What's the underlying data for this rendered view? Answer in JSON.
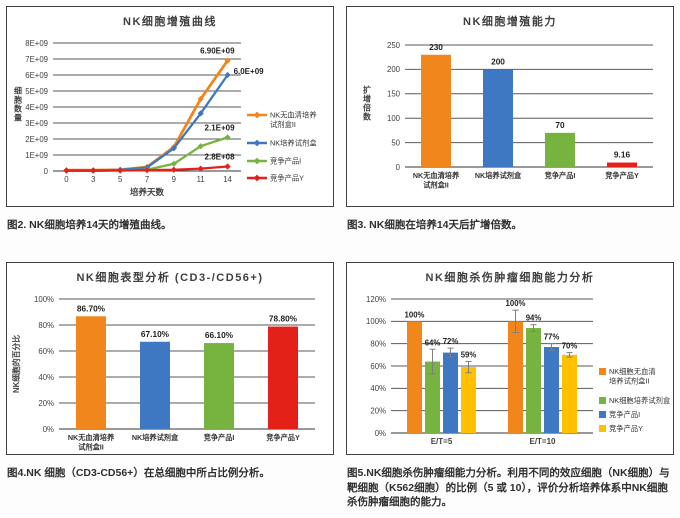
{
  "colors": {
    "orange": "#F0861C",
    "blue": "#3E78C3",
    "green": "#76B43F",
    "red": "#E32119",
    "yellow": "#FFC000",
    "grid": "#595959",
    "axis": "#3f3f3f",
    "label_text": "#1f1f1f"
  },
  "chart_data": [
    {
      "id": "nk-proliferation-curve",
      "type": "line",
      "title": "NK细胞增殖曲线",
      "xlabel": "培养天数",
      "ylabel": "细胞数量",
      "x": [
        0,
        3,
        5,
        7,
        9,
        11,
        14
      ],
      "ylim_e9": [
        0,
        8
      ],
      "yticks": [
        "0",
        "1E+09",
        "2E+09",
        "3E+09",
        "4E+09",
        "5E+09",
        "6E+09",
        "7E+09",
        "8E+09"
      ],
      "legend_position": "right",
      "grid": true,
      "series": [
        {
          "name": "NK无血清培养\n试剂盒II",
          "color": "#F0861C",
          "values_e9": [
            0.05,
            0.05,
            0.08,
            0.25,
            1.5,
            4.5,
            6.9
          ],
          "end_label": "6.90E+09",
          "label_pos": "above"
        },
        {
          "name": "NK培养试剂盒",
          "color": "#3E78C3",
          "values_e9": [
            0.04,
            0.04,
            0.07,
            0.22,
            1.42,
            3.6,
            6.0
          ],
          "end_label": "6.0E+09",
          "label_pos": "right"
        },
        {
          "name": "竞争产品I",
          "color": "#76B43F",
          "values_e9": [
            0.02,
            0.02,
            0.04,
            0.08,
            0.45,
            1.55,
            2.1
          ],
          "end_label": "2.1E+09",
          "label_pos": "above"
        },
        {
          "name": "竞争产品Y",
          "color": "#E32119",
          "values_e9": [
            0.02,
            0.02,
            0.03,
            0.05,
            0.08,
            0.15,
            0.28
          ],
          "end_label": "2.8E+08",
          "label_pos": "above"
        }
      ],
      "caption": "图2. NK细胞培养14天的增殖曲线。"
    },
    {
      "id": "nk-expansion-fold",
      "type": "bar",
      "title": "NK细胞增殖能力",
      "ylabel": "扩增倍数",
      "ylabel_style": "stacked",
      "categories": [
        "NK无血清培养\n试剂盒II",
        "NK培养试剂盒",
        "竞争产品I",
        "竞争产品Y"
      ],
      "values": [
        230,
        200,
        70,
        9.16
      ],
      "labels": [
        "230",
        "200",
        "70",
        "9.16"
      ],
      "colors": [
        "#F0861C",
        "#3E78C3",
        "#76B43F",
        "#E32119"
      ],
      "ylim": [
        0,
        250
      ],
      "yticks": [
        "0",
        "50",
        "100",
        "150",
        "200",
        "250"
      ],
      "grid": true,
      "caption": "图3. NK细胞在培养14天后扩增倍数。"
    },
    {
      "id": "nk-phenotype",
      "type": "bar",
      "title": "NK细胞表型分析 (CD3-/CD56+)",
      "ylabel": "NK细胞的百分比",
      "ylabel_style": "rotated",
      "categories": [
        "NK无血清培养\n试剂盒II",
        "NK培养试剂盒",
        "竞争产品I",
        "竞争产品Y"
      ],
      "values": [
        86.7,
        67.1,
        66.1,
        78.8
      ],
      "labels": [
        "86.70%",
        "67.10%",
        "66.10%",
        "78.80%"
      ],
      "colors": [
        "#F0861C",
        "#3E78C3",
        "#76B43F",
        "#E32119"
      ],
      "ylim": [
        0,
        100
      ],
      "yticks": [
        "0%",
        "20%",
        "40%",
        "60%",
        "80%",
        "100%"
      ],
      "grid": true,
      "caption": "图4.NK 细胞（CD3-CD56+）在总细胞中所占比例分析。"
    },
    {
      "id": "nk-tumor-killing",
      "type": "grouped_bar",
      "title": "NK细胞杀伤肿瘤细胞能力分析",
      "groups": [
        "E/T=5",
        "E/T=10"
      ],
      "series": [
        {
          "name": "NK细胞无血清\n培养试剂盒II",
          "color": "#F0861C",
          "values": [
            100,
            100
          ],
          "labels": [
            "100%",
            "100%"
          ],
          "err": [
            0,
            10
          ]
        },
        {
          "name": "NK细胞培养试剂盒",
          "color": "#76B43F",
          "values": [
            64,
            94
          ],
          "labels": [
            "64%",
            "94%"
          ],
          "err": [
            11,
            3
          ]
        },
        {
          "name": "竞争产品I",
          "color": "#3E78C3",
          "values": [
            72,
            77
          ],
          "labels": [
            "72%",
            "77%"
          ],
          "err": [
            4,
            3
          ]
        },
        {
          "name": "竞争产品Y",
          "color": "#FFC000",
          "values": [
            59,
            70
          ],
          "labels": [
            "59%",
            "70%"
          ],
          "err": [
            5,
            2
          ]
        }
      ],
      "ylim": [
        0,
        120
      ],
      "yticks": [
        "0%",
        "20%",
        "40%",
        "60%",
        "80%",
        "100%",
        "120%"
      ],
      "legend_position": "right",
      "grid": true,
      "caption": "图5.NK细胞杀伤肿瘤细能力分析。利用不同的效应细胞（NK细胞）与靶细胞（K562细胞）的比例（5 或 10），评价分析培养体系中NK细胞杀伤肿瘤细胞的能力。"
    }
  ]
}
